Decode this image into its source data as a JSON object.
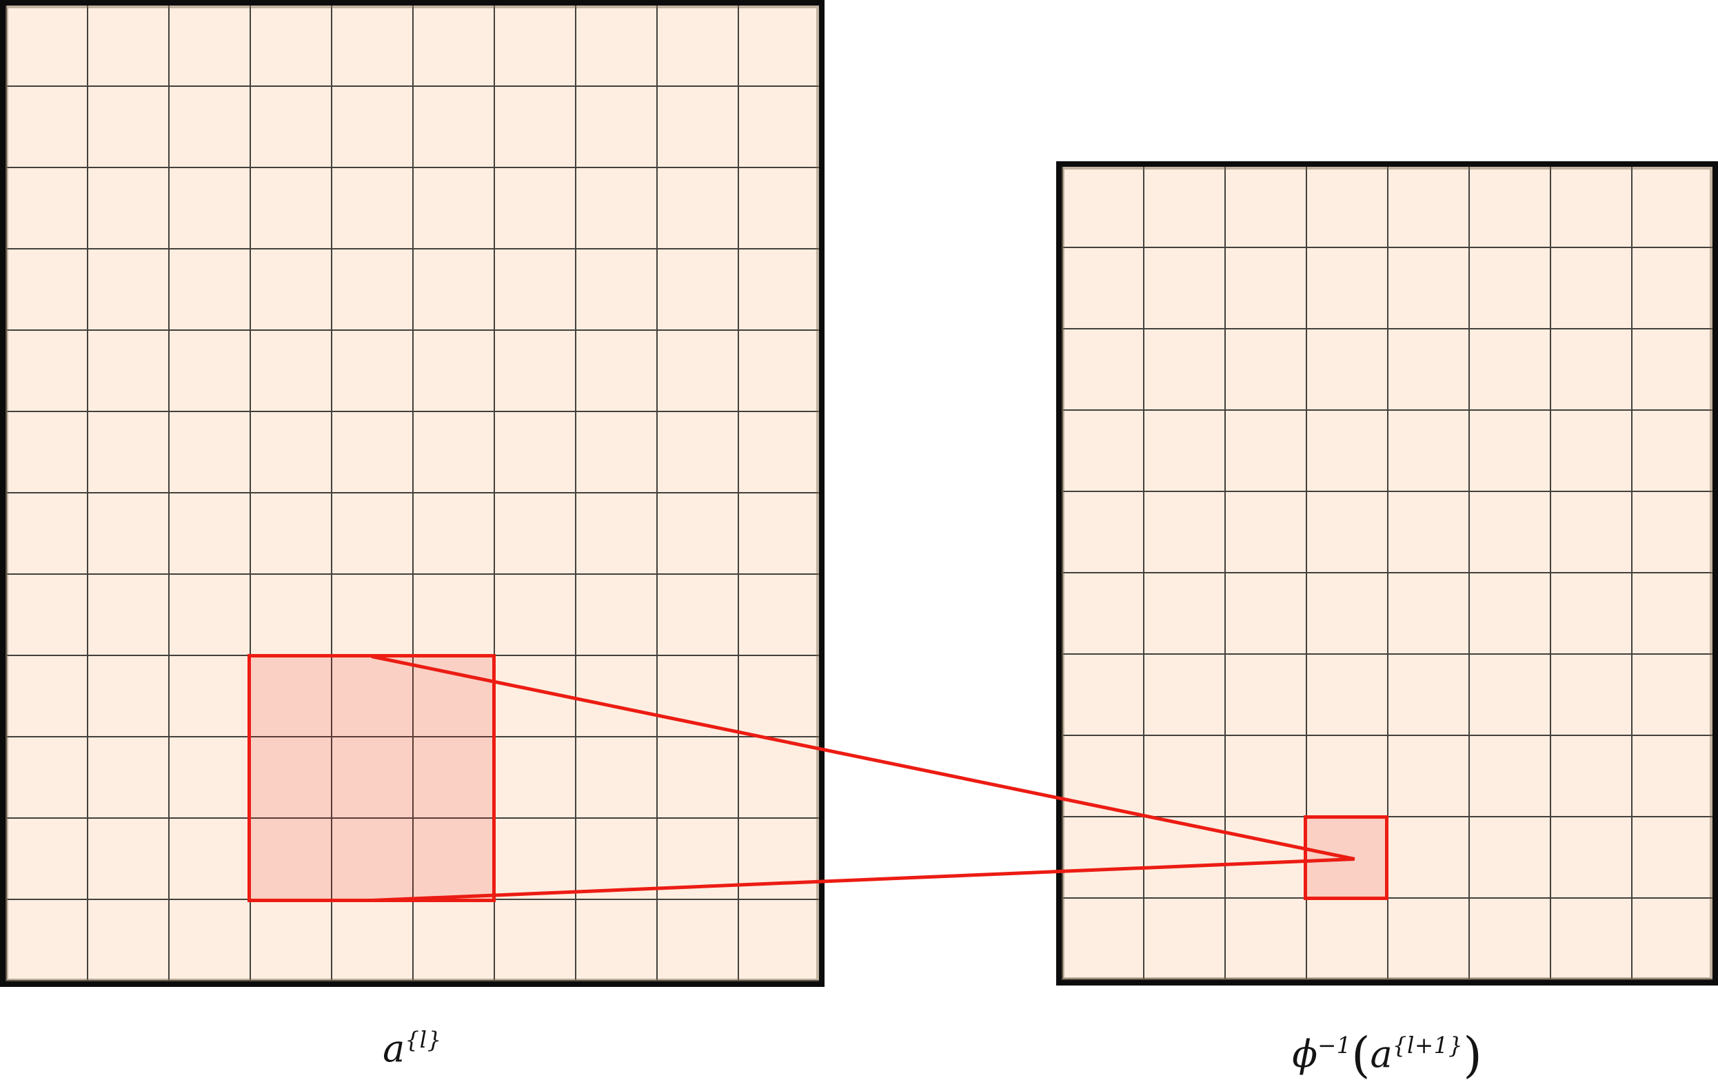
{
  "figure": {
    "background_color": "#ffffff",
    "colors": {
      "cell_fill": "#fdeee1",
      "grid_line": "#44403b",
      "grid_border": "#0c0c0c",
      "highlight_stroke": "#ec1c13",
      "highlight_fill": "rgba(236,28,19,0.14)"
    },
    "left_grid": {
      "columns": 10,
      "rows": 12,
      "highlight_region": {
        "column_start": 4,
        "column_end": 6,
        "row_start": 9,
        "row_end": 11,
        "cells": "3x3"
      }
    },
    "right_grid": {
      "columns": 8,
      "rows": 10,
      "highlight_cell": {
        "column": 4,
        "row": 9,
        "cells": "1x1"
      }
    },
    "connectors": {
      "count": 2,
      "from": "top and bottom edge midpoints of left highlighted window",
      "to": "center of right highlighted cell"
    },
    "labels": {
      "left": {
        "base": "a",
        "sup": "{l}"
      },
      "right": {
        "base": "ϕ",
        "sup": "−1",
        "paren_open": "(",
        "inner_base": "a",
        "inner_sup": "{l+1}",
        "paren_close": ")"
      }
    }
  }
}
